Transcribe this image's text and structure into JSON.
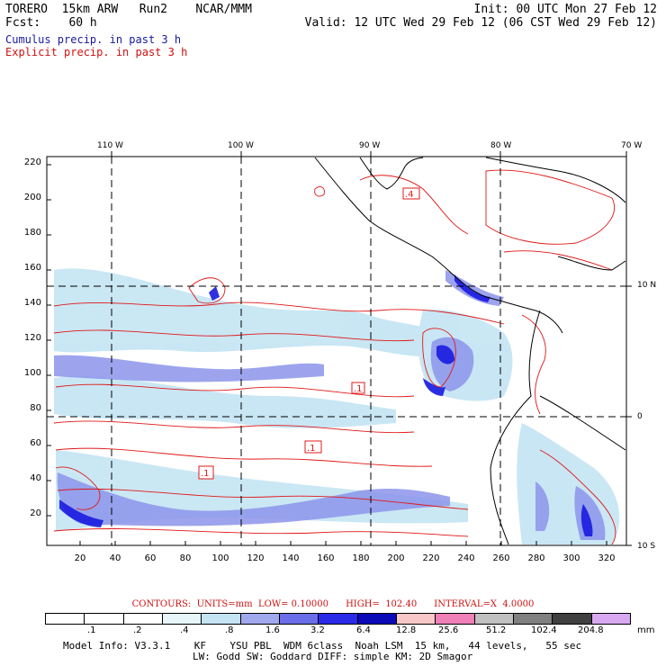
{
  "header": {
    "line1_left": "TORERO  15km ARW   Run2    NCAR/MMM",
    "line2_left": "Fcst:    60 h",
    "line1_right": "Init: 00 UTC Mon 27 Feb 12",
    "line2_right": "Valid: 12 UTC Wed 29 Feb 12 (06 CST Wed 29 Feb 12)",
    "legend_cumulus": "Cumulus precip. in past 3 h",
    "legend_explicit": "Explicit precip. in past 3 h",
    "colors": {
      "cumulus": "#1a1aa0",
      "explicit": "#d01010"
    }
  },
  "map": {
    "lon_labels": [
      "110 W",
      "100 W",
      "90 W",
      "80 W",
      "70 W"
    ],
    "lat_labels": [
      "10 N",
      "0",
      "10 S"
    ],
    "y_ticks": [
      "220",
      "200",
      "180",
      "160",
      "140",
      "120",
      "100",
      "80",
      "60",
      "40",
      "20"
    ],
    "x_ticks": [
      "20",
      "40",
      "60",
      "80",
      "100",
      "120",
      "140",
      "160",
      "180",
      "200",
      "220",
      "240",
      "260",
      "280",
      "300",
      "320"
    ],
    "contour_boxes": [
      ".4",
      ".1",
      ".1",
      ".1"
    ]
  },
  "footer": {
    "contours_line": "CONTOURS:  UNITS=mm  LOW= 0.10000      HIGH=  102.40      INTERVAL=X  4.0000",
    "colorbar_colors": [
      "#ffffff",
      "#ffffff",
      "#ffffff",
      "#e6f6fb",
      "#c4e4f3",
      "#a0a8ee",
      "#6a6ee8",
      "#2a2ae8",
      "#0a0ab8",
      "#f8c8c8",
      "#f080b8",
      "#c0c0c0",
      "#808080",
      "#404040",
      "#d8a8f0"
    ],
    "colorbar_ticks": [
      ".1",
      ".2",
      ".4",
      ".8",
      "1.6",
      "3.2",
      "6.4",
      "12.8",
      "25.6",
      "51.2",
      "102.4",
      "204.8"
    ],
    "unit": "mm",
    "model_info_1": "Model Info: V3.3.1    KF    YSU PBL  WDM 6class  Noah LSM  15 km,   44 levels,   55 sec",
    "model_info_2": "LW: Godd SW: Goddard DIFF: simple KM: 2D Smagor"
  }
}
